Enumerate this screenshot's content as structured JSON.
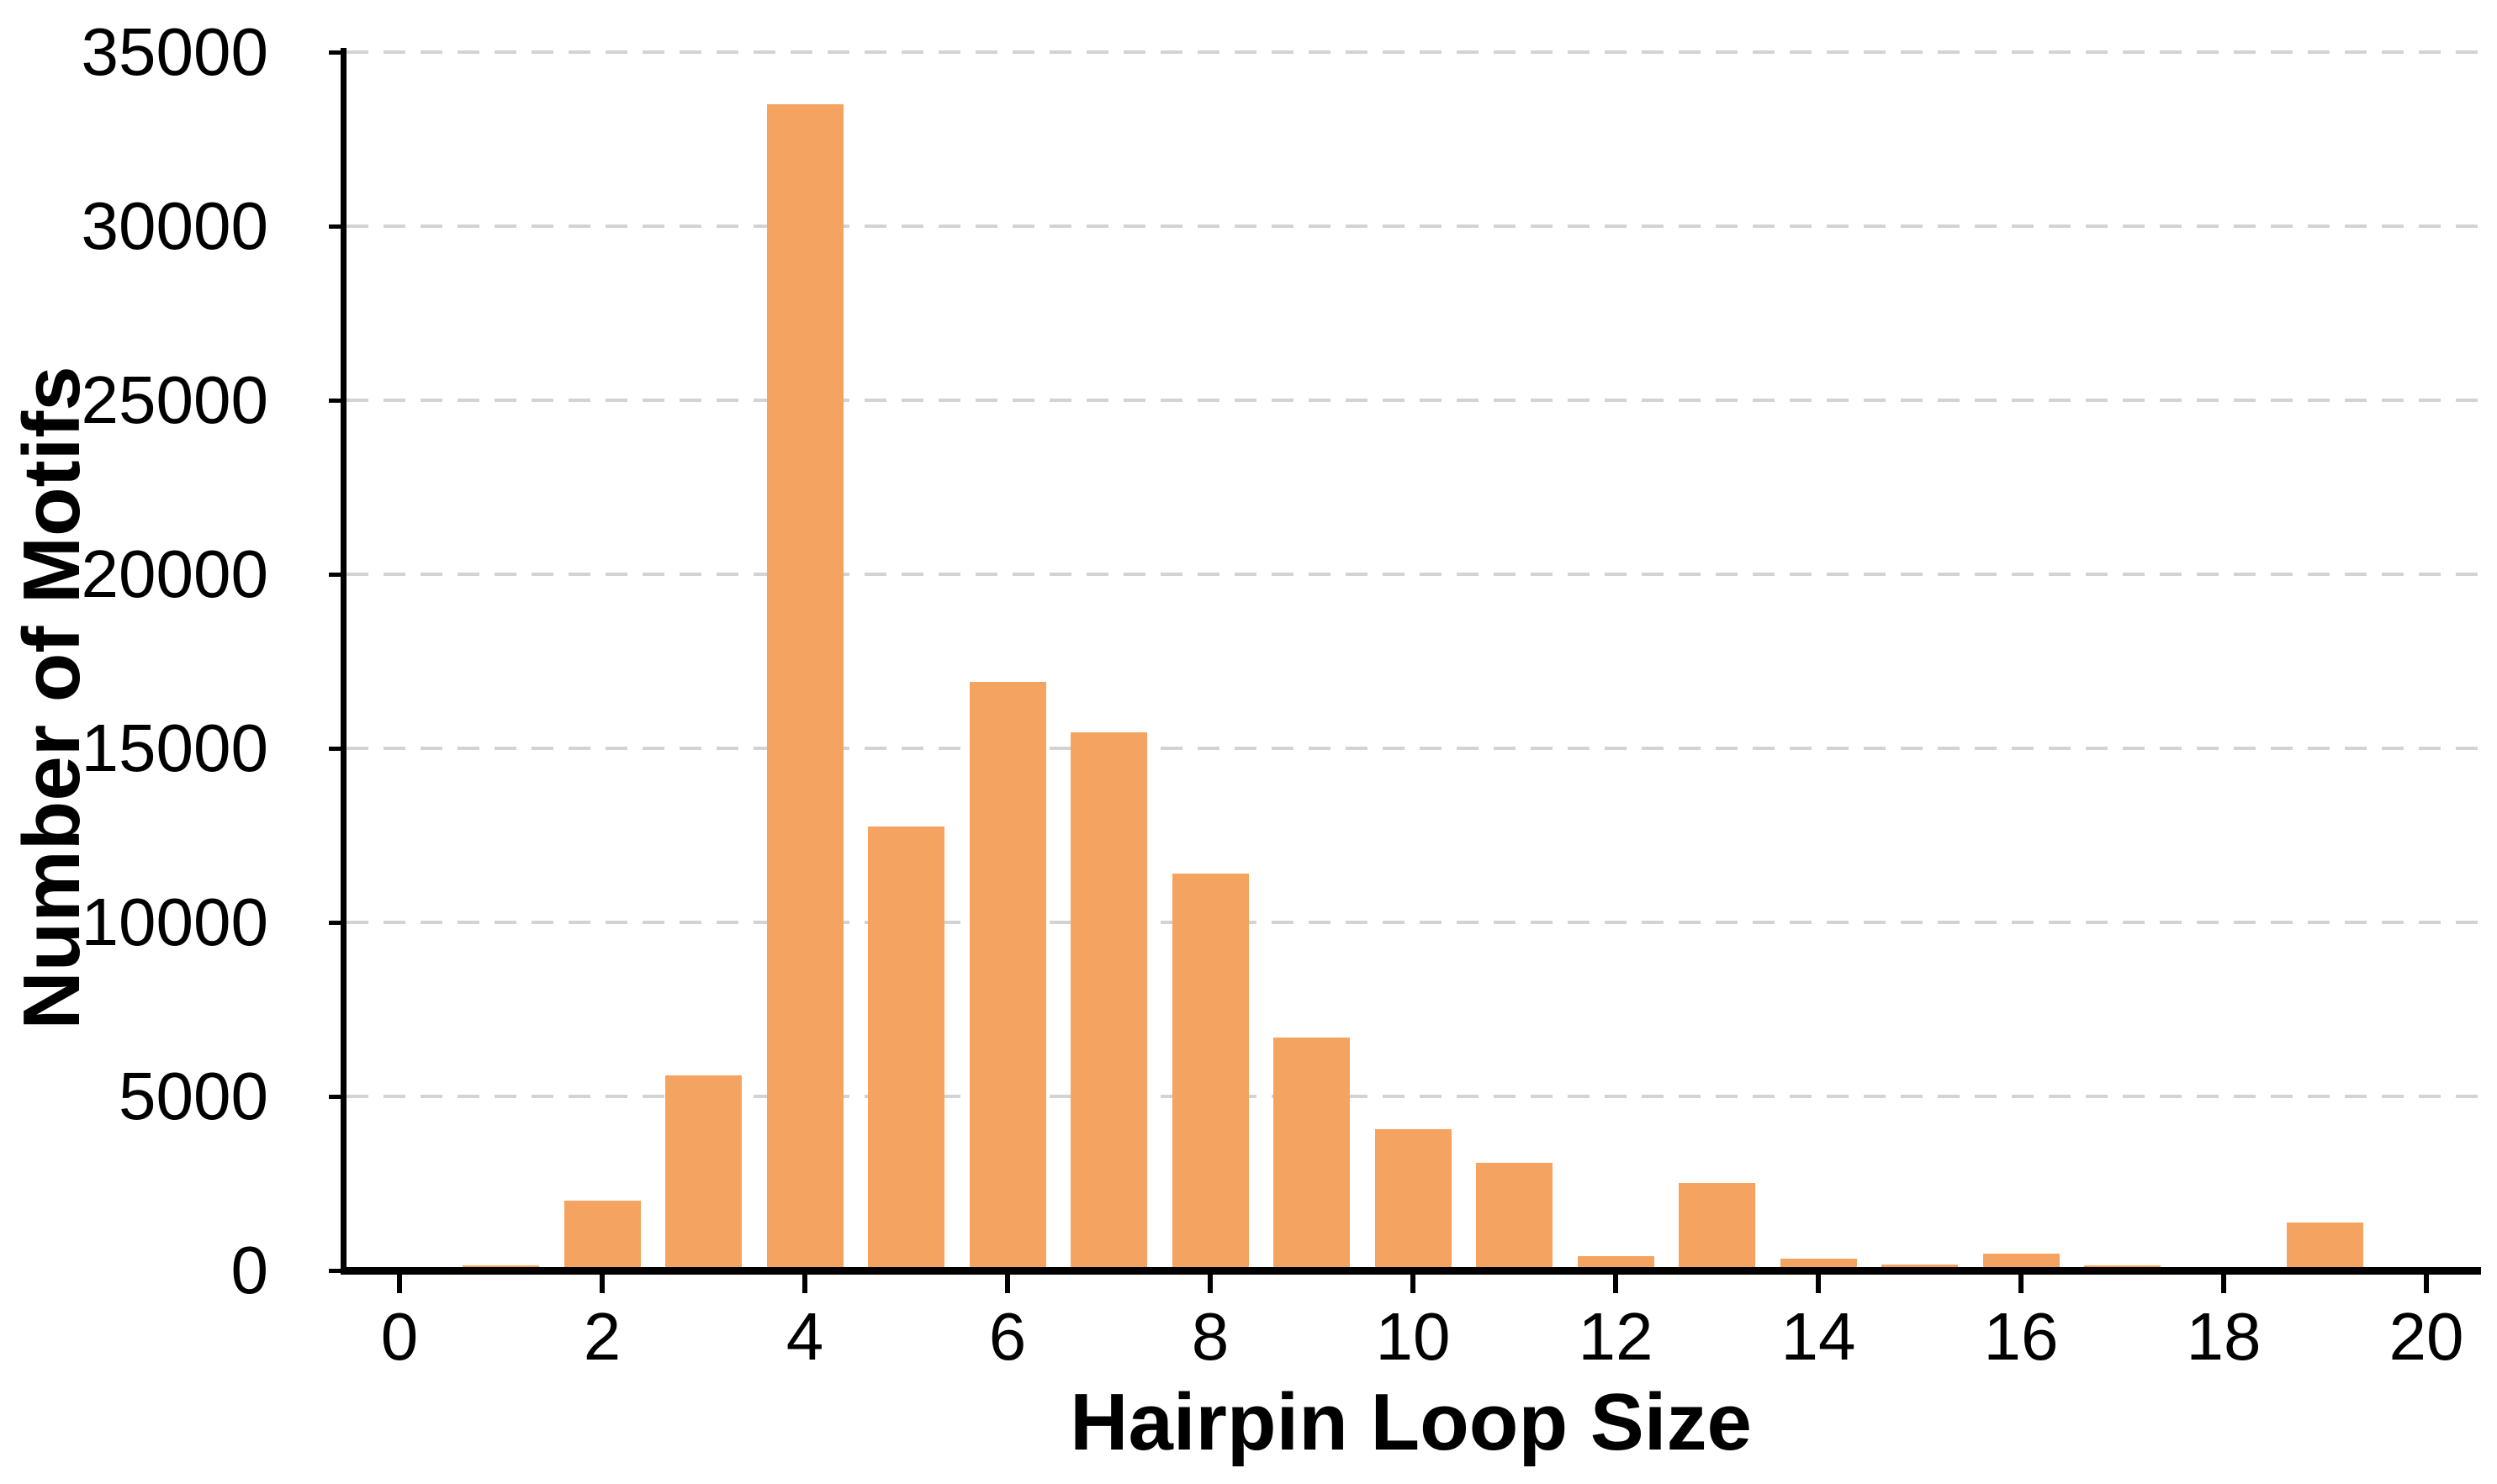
{
  "chart_data": {
    "type": "bar",
    "title": "",
    "xlabel": "Hairpin Loop Size",
    "ylabel": "Number of Motifs",
    "x": [
      0,
      1,
      2,
      3,
      4,
      5,
      6,
      7,
      8,
      9,
      10,
      11,
      12,
      13,
      14,
      15,
      16,
      17,
      18,
      19,
      20
    ],
    "values": [
      0,
      150,
      2000,
      5600,
      33500,
      12750,
      16900,
      15450,
      11400,
      6700,
      4050,
      3100,
      420,
      2520,
      330,
      170,
      480,
      150,
      0,
      1380,
      0
    ],
    "xticks": [
      0,
      2,
      4,
      6,
      8,
      10,
      12,
      14,
      16,
      18,
      20
    ],
    "xtick_labels": [
      "0",
      "2",
      "4",
      "6",
      "8",
      "10",
      "12",
      "14",
      "16",
      "18",
      "20"
    ],
    "yticks": [
      0,
      5000,
      10000,
      15000,
      20000,
      25000,
      30000,
      35000
    ],
    "ytick_labels": [
      "0",
      "5000",
      "10000",
      "15000",
      "20000",
      "25000",
      "30000",
      "35000"
    ],
    "xlim": [
      -0.58,
      20.55
    ],
    "ylim": [
      0,
      35000
    ],
    "grid": "horizontal-dashed",
    "legend_position": "none",
    "bar_color": "#F4A460",
    "grid_color": "#D3D3D3",
    "axis_color": "#000000",
    "text_color": "#000000"
  }
}
